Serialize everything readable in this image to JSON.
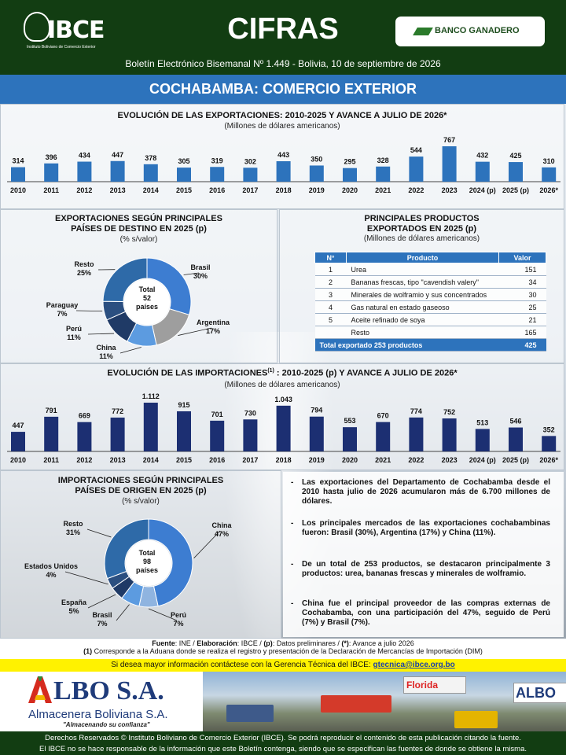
{
  "header": {
    "logo_text": "IBCE",
    "logo_subtitle": "Instituto Boliviano de Comercio Exterior",
    "title": "CIFRAS",
    "bank_label": "BANCO GANADERO",
    "bulletin": "Boletín Electrónico Bisemanal Nº 1.449 - Bolivia, 10 de septiembre de 2026"
  },
  "topic": "COCHABAMBA: COMERCIO EXTERIOR",
  "exports_chart": {
    "title": "EVOLUCIÓN DE LAS EXPORTACIONES: 2010-2025 Y AVANCE A JULIO DE 2026*",
    "subtitle": "(Millones de dólares americanos)",
    "color": "#2d73bc"
  },
  "imports_chart": {
    "title_a": "EVOLUCIÓN DE LAS IMPORTACIONES",
    "title_sup": "(1)",
    "title_b": " : 2010-2025 (p) Y AVANCE A JULIO DE 2026*",
    "subtitle": "(Millones de dólares americanos)",
    "color": "#1c2f72"
  },
  "export_destinations": {
    "title_1": "EXPORTACIONES SEGÚN PRINCIPALES",
    "title_2": "PAÍSES DE DESTINO EN 2025 (p)",
    "subtitle": "(% s/valor)",
    "center_1": "Total",
    "center_2": "52",
    "center_3": "países"
  },
  "import_origins": {
    "title_1": "IMPORTACIONES SEGÚN PRINCIPALES",
    "title_2": "PAÍSES DE ORIGEN EN 2025 (p)",
    "subtitle": "(% s/valor)",
    "center_1": "Total",
    "center_2": "98",
    "center_3": "países"
  },
  "products_table": {
    "title_1": "PRINCIPALES PRODUCTOS",
    "title_2": "EXPORTADOS EN 2025 (p)",
    "subtitle": "(Millones de dólares americanos)",
    "col_n": "N°",
    "col_product": "Producto",
    "col_value": "Valor",
    "rows": [
      {
        "n": "1",
        "product": "Urea",
        "value": "151"
      },
      {
        "n": "2",
        "product": "Bananas frescas, tipo \"cavendish valery\"",
        "value": "34"
      },
      {
        "n": "3",
        "product": "Minerales de wolframio y sus concentrados",
        "value": "30"
      },
      {
        "n": "4",
        "product": "Gas natural en estado gaseoso",
        "value": "25"
      },
      {
        "n": "5",
        "product": "Aceite refinado de soya",
        "value": "21"
      },
      {
        "n": "",
        "product": "Resto",
        "value": "165"
      }
    ],
    "total_label": "Total exportado 253 productos",
    "total_value": "425"
  },
  "notes": [
    "Las exportaciones del Departamento de Cochabamba desde el 2010 hasta julio de 2026 acumularon más de 6.700 millones de dólares.",
    "Los principales mercados de las exportaciones cochabambinas fueron: Brasil (30%), Argentina (17%) y China (11%).",
    "De un total de 253 productos, se destacaron principalmente 3 productos: urea, bananas frescas y minerales de wolframio.",
    "China fue el principal proveedor de las compras externas de Cochabamba, con una participación del 47%, seguido de Perú (7%) y Brasil (7%)."
  ],
  "footer": {
    "source_label": "Fuente",
    "source_text": ": INE / ",
    "elab_label": "Elaboración",
    "elab_text": ": IBCE / ",
    "p_label": "(p)",
    "p_text": ": Datos preliminares / ",
    "star_label": "(*)",
    "star_text": ": Avance a julio 2026",
    "note_label": "(1)",
    "note_text": " Corresponde a la Aduana donde se realiza el registro y presentación de la Declaración de Mercancías de Importación (DIM)",
    "contact_text": "Si desea mayor información contáctese con la Gerencia Técnica del IBCE: ",
    "contact_email": "gtecnica@ibce.org.bo"
  },
  "ad": {
    "brand": "LBO S.A.",
    "company": "Almacenera Boliviana S.A.",
    "tagline": "\"Almacenando su confianza\"",
    "sign_1": "Florida",
    "sign_2": "ALBO"
  },
  "bottom": {
    "line_1": "Derechos Reservados © Instituto Boliviano de Comercio Exterior (IBCE). Se podrá reproducir el contenido de esta publicación citando la fuente.",
    "line_2": "El IBCE no se hace responsable de la información que este Boletín contenga, siendo que se especifican las fuentes de donde se obtiene la misma."
  },
  "chart_data": [
    {
      "type": "bar",
      "title": "EVOLUCIÓN DE LAS EXPORTACIONES: 2010-2025 Y AVANCE A JULIO DE 2026*",
      "ylabel": "(Millones de dólares americanos)",
      "categories": [
        "2010",
        "2011",
        "2012",
        "2013",
        "2014",
        "2015",
        "2016",
        "2017",
        "2018",
        "2019",
        "2020",
        "2021",
        "2022",
        "2023",
        "2024 (p)",
        "2025 (p)",
        "2026*"
      ],
      "value_labels": [
        "314",
        "396",
        "434",
        "447",
        "378",
        "305",
        "319",
        "302",
        "443",
        "350",
        "295",
        "328",
        "544",
        "767",
        "432",
        "425",
        "310"
      ],
      "values": [
        314,
        396,
        434,
        447,
        378,
        305,
        319,
        302,
        443,
        350,
        295,
        328,
        544,
        767,
        432,
        425,
        310
      ]
    },
    {
      "type": "bar",
      "title": "EVOLUCIÓN DE LAS IMPORTACIONES(1) : 2010-2025 (p) Y AVANCE A JULIO DE 2026*",
      "ylabel": "(Millones de dólares americanos)",
      "categories": [
        "2010",
        "2011",
        "2012",
        "2013",
        "2014",
        "2015",
        "2016",
        "2017",
        "2018",
        "2019",
        "2020",
        "2021",
        "2022",
        "2023",
        "2024 (p)",
        "2025 (p)",
        "2026*"
      ],
      "value_labels": [
        "447",
        "791",
        "669",
        "772",
        "1.112",
        "915",
        "701",
        "730",
        "1.043",
        "794",
        "553",
        "670",
        "774",
        "752",
        "513",
        "546",
        "352"
      ],
      "values": [
        447,
        791,
        669,
        772,
        1112,
        915,
        701,
        730,
        1043,
        794,
        553,
        670,
        774,
        752,
        513,
        546,
        352
      ]
    },
    {
      "type": "pie",
      "title": "EXPORTACIONES SEGÚN PRINCIPALES PAÍSES DE DESTINO EN 2025 (p)",
      "slices": [
        {
          "label": "Brasil",
          "pct": "30%",
          "value": 30,
          "color": "#3d7dd1"
        },
        {
          "label": "Argentina",
          "pct": "17%",
          "value": 17,
          "color": "#9e9e9e"
        },
        {
          "label": "China",
          "pct": "11%",
          "value": 11,
          "color": "#5c9be0"
        },
        {
          "label": "Perú",
          "pct": "11%",
          "value": 11,
          "color": "#1f3a66"
        },
        {
          "label": "Paraguay",
          "pct": "7%",
          "value": 7,
          "color": "#2b4f80"
        },
        {
          "label": "Resto",
          "pct": "25%",
          "value": 25,
          "color": "#2e6aa8"
        }
      ]
    },
    {
      "type": "pie",
      "title": "IMPORTACIONES SEGÚN PRINCIPALES PAÍSES DE ORIGEN EN 2025 (p)",
      "slices": [
        {
          "label": "China",
          "pct": "47%",
          "value": 47,
          "color": "#3d7dd1"
        },
        {
          "label": "Perú",
          "pct": "7%",
          "value": 7,
          "color": "#8fb4e0"
        },
        {
          "label": "Brasil",
          "pct": "7%",
          "value": 7,
          "color": "#5c9be0"
        },
        {
          "label": "España",
          "pct": "5%",
          "value": 5,
          "color": "#1f3a66"
        },
        {
          "label": "Estados Unidos",
          "pct": "4%",
          "value": 4,
          "color": "#2b4f80"
        },
        {
          "label": "Resto",
          "pct": "31%",
          "value": 31,
          "color": "#2e6aa8"
        }
      ]
    }
  ]
}
